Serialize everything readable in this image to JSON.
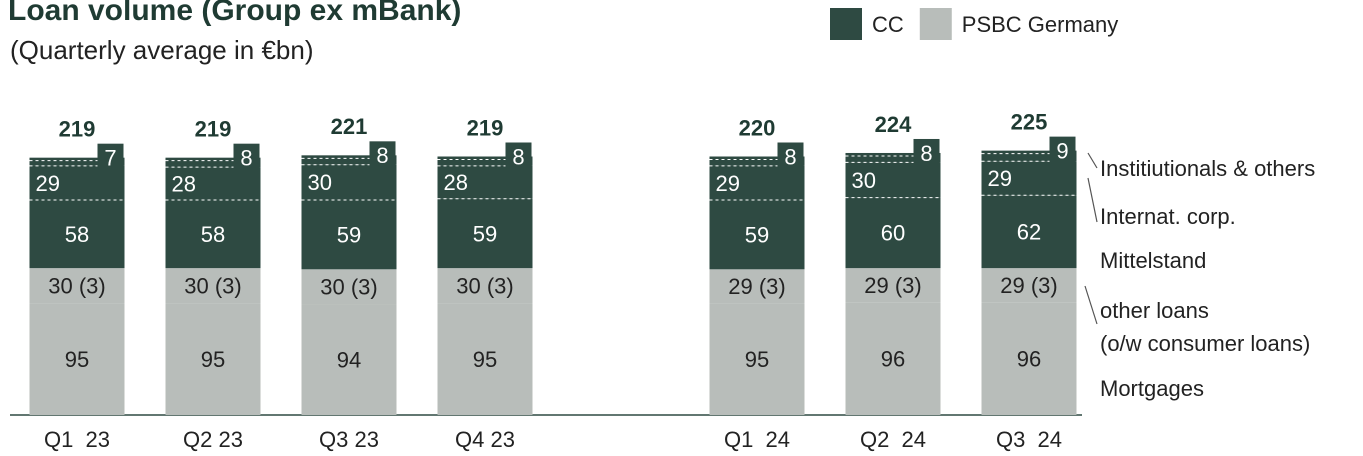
{
  "chart_data": {
    "type": "stacked_bar",
    "title": "Loan volume (Group ex mBank)",
    "subtitle": "(Quarterly average in €bn)",
    "legend": [
      {
        "name": "CC",
        "color": "#2e4a42"
      },
      {
        "name": "PSBC Germany",
        "color": "#b8bdba"
      }
    ],
    "categories": [
      "Q1  23",
      "Q2 23",
      "Q3 23",
      "Q4 23",
      null,
      "Q1  24",
      "Q2  24",
      "Q3  24"
    ],
    "series": [
      {
        "name": "Mortgages",
        "color": "#b8bdba",
        "values": [
          95,
          95,
          94,
          95,
          null,
          95,
          96,
          96
        ]
      },
      {
        "name": "other loans\n(o/w consumer loans)",
        "color": "#b8bdba",
        "values": [
          30,
          30,
          30,
          30,
          null,
          29,
          29,
          29
        ],
        "value_labels": [
          "30 (3)",
          "30 (3)",
          "30 (3)",
          "30 (3)",
          null,
          "29 (3)",
          "29 (3)",
          "29 (3)"
        ]
      },
      {
        "name": "Mittelstand",
        "color": "#2e4a42",
        "values": [
          58,
          58,
          59,
          59,
          null,
          59,
          60,
          62
        ]
      },
      {
        "name": "Internat. corp.",
        "color": "#2e4a42",
        "values": [
          29,
          28,
          30,
          28,
          null,
          29,
          30,
          29
        ]
      },
      {
        "name": "Institiutionals & others",
        "color": "#2e4a42",
        "values": [
          7,
          8,
          8,
          8,
          null,
          8,
          8,
          9
        ]
      }
    ],
    "totals": [
      219,
      219,
      221,
      219,
      null,
      220,
      224,
      225
    ]
  }
}
